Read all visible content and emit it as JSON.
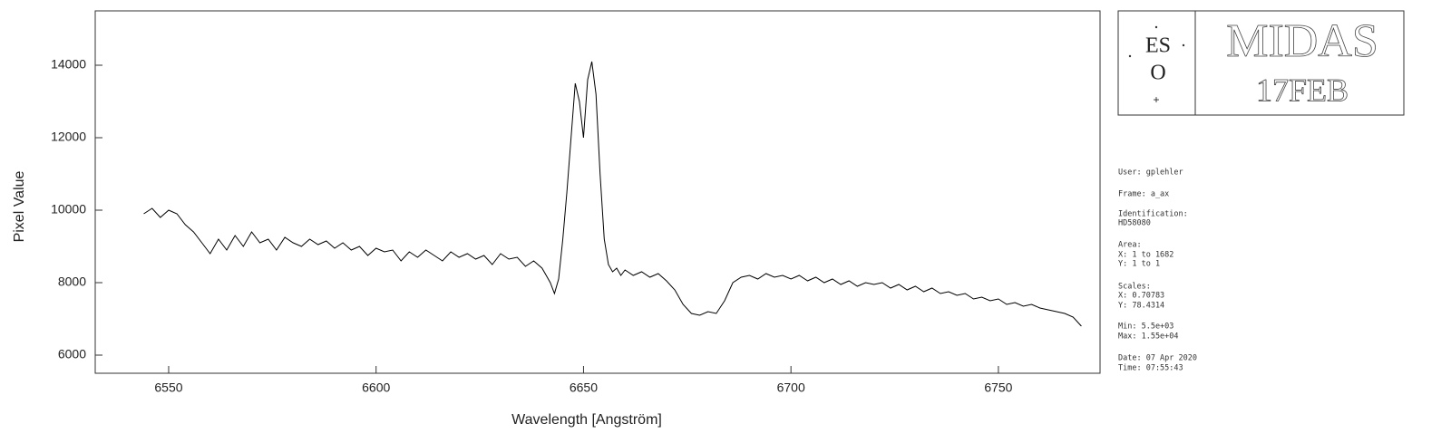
{
  "chart_data": {
    "type": "line",
    "xlabel": "Wavelength [Angström]",
    "ylabel": "Pixel Value",
    "color": "#000000",
    "x": [
      6544,
      6546,
      6548,
      6550,
      6552,
      6554,
      6556,
      6558,
      6560,
      6562,
      6564,
      6566,
      6568,
      6570,
      6572,
      6574,
      6576,
      6578,
      6580,
      6582,
      6584,
      6586,
      6588,
      6590,
      6592,
      6594,
      6596,
      6598,
      6600,
      6602,
      6604,
      6606,
      6608,
      6610,
      6612,
      6614,
      6616,
      6618,
      6620,
      6622,
      6624,
      6626,
      6628,
      6630,
      6632,
      6634,
      6636,
      6638,
      6640,
      6641,
      6642,
      6643,
      6644,
      6645,
      6646,
      6647,
      6648,
      6649,
      6650,
      6651,
      6652,
      6653,
      6654,
      6655,
      6656,
      6657,
      6658,
      6659,
      6660,
      6662,
      6664,
      6666,
      6668,
      6670,
      6672,
      6674,
      6676,
      6678,
      6680,
      6682,
      6684,
      6686,
      6688,
      6690,
      6692,
      6694,
      6696,
      6698,
      6700,
      6702,
      6704,
      6706,
      6708,
      6710,
      6712,
      6714,
      6716,
      6718,
      6720,
      6722,
      6724,
      6726,
      6728,
      6730,
      6732,
      6734,
      6736,
      6738,
      6740,
      6742,
      6744,
      6746,
      6748,
      6750,
      6752,
      6754,
      6756,
      6758,
      6760,
      6762,
      6764,
      6766,
      6768,
      6770
    ],
    "values": [
      9900,
      10050,
      9800,
      10000,
      9900,
      9600,
      9400,
      9100,
      8800,
      9200,
      8900,
      9300,
      9000,
      9400,
      9100,
      9200,
      8900,
      9250,
      9100,
      9000,
      9200,
      9050,
      9150,
      8950,
      9100,
      8900,
      9000,
      8750,
      8950,
      8850,
      8900,
      8600,
      8850,
      8700,
      8900,
      8750,
      8600,
      8850,
      8700,
      8800,
      8650,
      8750,
      8500,
      8800,
      8650,
      8700,
      8450,
      8600,
      8400,
      8200,
      8000,
      7700,
      8100,
      9200,
      10500,
      12000,
      13500,
      13000,
      12000,
      13600,
      14100,
      13200,
      11000,
      9200,
      8500,
      8300,
      8400,
      8200,
      8350,
      8200,
      8300,
      8150,
      8250,
      8050,
      7800,
      7400,
      7150,
      7100,
      7200,
      7150,
      7500,
      8000,
      8150,
      8200,
      8100,
      8250,
      8150,
      8200,
      8100,
      8200,
      8050,
      8150,
      8000,
      8100,
      7950,
      8050,
      7900,
      8000,
      7950,
      8000,
      7850,
      7950,
      7800,
      7900,
      7750,
      7850,
      7700,
      7750,
      7650,
      7700,
      7550,
      7600,
      7500,
      7550,
      7400,
      7450,
      7350,
      7400,
      7300,
      7250,
      7200,
      7150,
      7050,
      6800
    ],
    "xlim": [
      6532.3,
      6774.5
    ],
    "ylim": [
      5500,
      15500
    ],
    "xticks": [
      6550,
      6600,
      6650,
      6700,
      6750
    ],
    "yticks": [
      6000,
      8000,
      10000,
      12000,
      14000
    ]
  },
  "panel": {
    "logo_top": "ES",
    "logo_bottom": "O",
    "title": "MIDAS",
    "subtitle": "17FEB",
    "lines": [
      "User: gplehler",
      "Frame: a_ax",
      "Identification:",
      "HD58080",
      "Area:",
      "X: 1 to 1682",
      "Y: 1 to 1",
      "Scales:",
      "X: 0.70783",
      "Y: 78.4314",
      "Min: 5.5e+03",
      "Max: 1.55e+04",
      "Date: 07 Apr 2020",
      "Time: 07:55:43"
    ]
  }
}
